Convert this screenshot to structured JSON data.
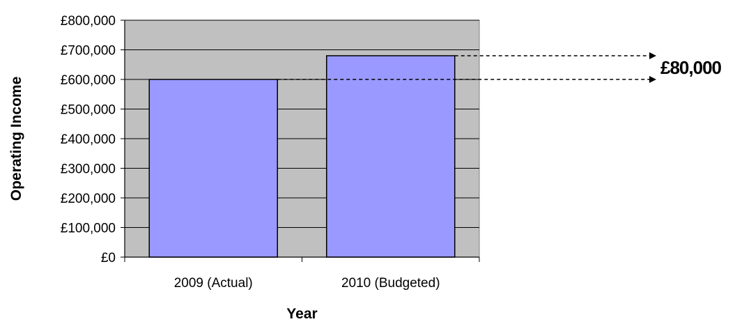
{
  "chart_data": {
    "type": "bar",
    "categories": [
      "2009 (Actual)",
      "2010 (Budgeted)"
    ],
    "values": [
      600000,
      680000
    ],
    "xlabel": "Year",
    "ylabel": "Operating Income",
    "ylim": [
      0,
      800000
    ],
    "y_ticks": [
      0,
      100000,
      200000,
      300000,
      400000,
      500000,
      600000,
      700000,
      800000
    ],
    "y_tick_labels": [
      "£0",
      "£100,000",
      "£200,000",
      "£300,000",
      "£400,000",
      "£500,000",
      "£600,000",
      "£700,000",
      "£800,000"
    ],
    "grid": true,
    "legend": "none",
    "annotation": {
      "text": "£80,000",
      "from_value": 600000,
      "to_value": 680000
    },
    "colors": {
      "plot_background": "#c0c0c0",
      "bar_fill": "#9999ff",
      "bar_stroke": "#000000",
      "grid": "#000000"
    }
  }
}
